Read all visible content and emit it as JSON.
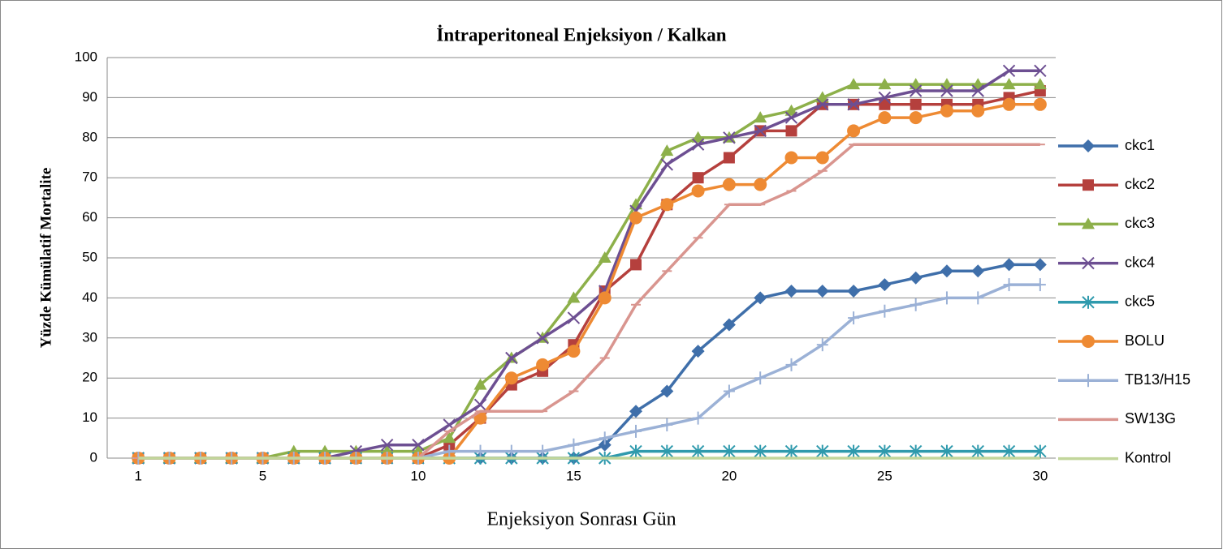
{
  "chart_data": {
    "type": "line",
    "title": "İntraperitoneal Enjeksiyon / Kalkan",
    "x_label": "Enjeksiyon Sonrası Gün",
    "y_label": "Yüzde Kümülatif Mortalite",
    "x": [
      1,
      2,
      3,
      4,
      5,
      6,
      7,
      8,
      9,
      10,
      11,
      12,
      13,
      14,
      15,
      16,
      17,
      18,
      19,
      20,
      21,
      22,
      23,
      24,
      25,
      26,
      27,
      28,
      29,
      30
    ],
    "xlim": [
      0,
      30.5
    ],
    "xticks": [
      1,
      5,
      10,
      15,
      20,
      25,
      30
    ],
    "ylim": [
      0,
      100
    ],
    "yticks": [
      0,
      10,
      20,
      30,
      40,
      50,
      60,
      70,
      80,
      90,
      100
    ],
    "grid": true,
    "legend": "right",
    "series": [
      {
        "name": "ckc1",
        "color": "#3f6faa",
        "marker": "diamond",
        "values": [
          0,
          0,
          0,
          0,
          0,
          0,
          0,
          0,
          0,
          0,
          0,
          0,
          0,
          0,
          0,
          3.3,
          11.7,
          16.7,
          26.7,
          33.3,
          40,
          41.7,
          41.7,
          41.7,
          43.3,
          45,
          46.7,
          46.7,
          48.3,
          48.3
        ]
      },
      {
        "name": "ckc2",
        "color": "#b5403d",
        "marker": "square",
        "values": [
          0,
          0,
          0,
          0,
          0,
          0,
          0,
          0,
          0,
          0,
          3.3,
          10,
          18.3,
          21.7,
          28.3,
          41.7,
          48.3,
          63.3,
          70,
          75,
          81.7,
          81.7,
          88.3,
          88.3,
          88.3,
          88.3,
          88.3,
          88.3,
          90,
          91.7
        ]
      },
      {
        "name": "ckc3",
        "color": "#8db04a",
        "marker": "triangle",
        "values": [
          0,
          0,
          0,
          0,
          0,
          1.7,
          1.7,
          1.7,
          1.7,
          1.7,
          5,
          18.3,
          25,
          30,
          40,
          50,
          63.3,
          76.7,
          80,
          80,
          85,
          86.7,
          90,
          93.3,
          93.3,
          93.3,
          93.3,
          93.3,
          93.3,
          93.3
        ]
      },
      {
        "name": "ckc4",
        "color": "#6d4f92",
        "marker": "x",
        "values": [
          0,
          0,
          0,
          0,
          0,
          0,
          0,
          1.7,
          3.3,
          3.3,
          8.3,
          13.3,
          25,
          30,
          35,
          41.7,
          61.7,
          73.3,
          78.3,
          80,
          81.7,
          85,
          88.3,
          88.3,
          90,
          91.7,
          91.7,
          91.7,
          96.7,
          96.7
        ]
      },
      {
        "name": "ckc5",
        "color": "#2f9aad",
        "marker": "star",
        "values": [
          0,
          0,
          0,
          0,
          0,
          0,
          0,
          0,
          0,
          0,
          0,
          0,
          0,
          0,
          0,
          0,
          1.7,
          1.7,
          1.7,
          1.7,
          1.7,
          1.7,
          1.7,
          1.7,
          1.7,
          1.7,
          1.7,
          1.7,
          1.7,
          1.7
        ]
      },
      {
        "name": "BOLU",
        "color": "#ee8a33",
        "marker": "circle",
        "values": [
          0,
          0,
          0,
          0,
          0,
          0,
          0,
          0,
          0,
          0,
          0,
          10,
          20,
          23.3,
          26.7,
          40,
          60,
          63.3,
          66.7,
          68.3,
          68.3,
          75,
          75,
          81.7,
          85,
          85,
          86.7,
          86.7,
          88.3,
          88.3
        ]
      },
      {
        "name": "TB13/H15",
        "color": "#9bb1d6",
        "marker": "plus",
        "values": [
          0,
          0,
          0,
          0,
          0,
          0,
          0,
          0,
          0,
          0,
          1.7,
          1.7,
          1.7,
          1.7,
          3.3,
          5,
          6.7,
          8.3,
          10,
          16.7,
          20,
          23.3,
          28.3,
          35,
          36.7,
          38.3,
          40,
          40,
          43.3,
          43.3
        ]
      },
      {
        "name": "SW13G",
        "color": "#d9958f",
        "marker": "dash",
        "values": [
          0,
          0,
          0,
          0,
          0,
          0,
          0,
          0,
          0,
          0,
          6.7,
          11.7,
          11.7,
          11.7,
          16.7,
          25,
          38.3,
          46.7,
          55,
          63.3,
          63.3,
          66.7,
          71.7,
          78.3,
          78.3,
          78.3,
          78.3,
          78.3,
          78.3,
          78.3
        ]
      },
      {
        "name": "Kontrol",
        "color": "#c2d69b",
        "marker": "none",
        "values": [
          0,
          0,
          0,
          0,
          0,
          0,
          0,
          0,
          0,
          0,
          0,
          0,
          0,
          0,
          0,
          0,
          0,
          0,
          0,
          0,
          0,
          0,
          0,
          0,
          0,
          0,
          0,
          0,
          0,
          0
        ]
      }
    ]
  }
}
